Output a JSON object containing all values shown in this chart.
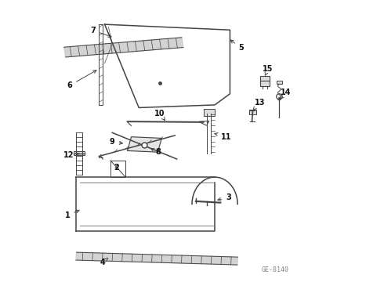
{
  "bg_color": "#ffffff",
  "diagram_code": "GE-8140",
  "fig_width": 4.9,
  "fig_height": 3.6,
  "dpi": 100,
  "diagram_color": "#444444",
  "label_color": "#111111",
  "watermark_color": "#888888"
}
